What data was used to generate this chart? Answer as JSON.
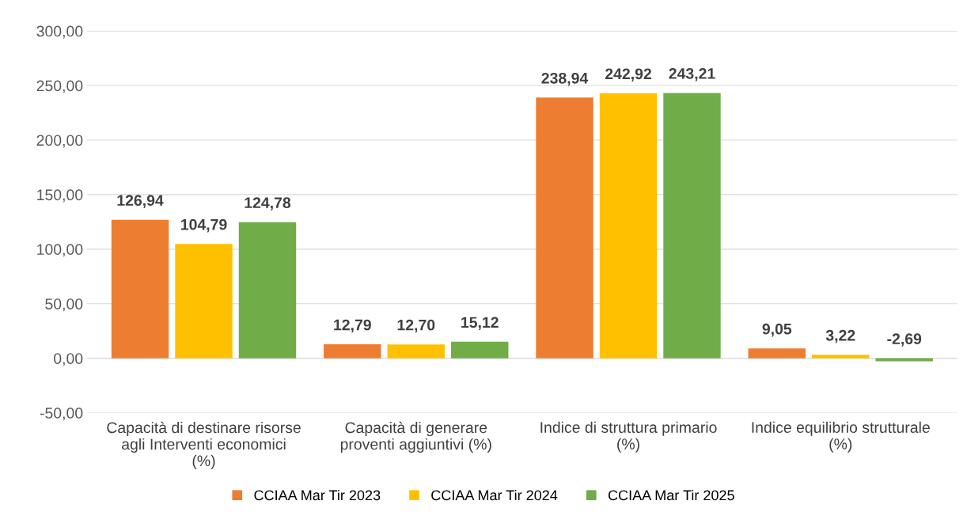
{
  "chart_data": {
    "type": "bar",
    "categories": [
      "Capacità di destinare risorse\nagli Interventi economici\n(%)",
      "Capacità di generare\nproventi aggiuntivi (%)",
      "Indice di struttura primario\n(%)",
      "Indice equilibrio strutturale\n(%)"
    ],
    "series": [
      {
        "name": "CCIAA Mar Tir 2023",
        "color": "#ed7d31",
        "values": [
          126.94,
          12.79,
          238.94,
          9.05
        ],
        "value_labels": [
          "126,94",
          "12,79",
          "238,94",
          "9,05"
        ]
      },
      {
        "name": "CCIAA Mar Tir 2024",
        "color": "#ffc000",
        "values": [
          104.79,
          12.7,
          242.92,
          3.22
        ],
        "value_labels": [
          "104,79",
          "12,70",
          "242,92",
          "3,22"
        ]
      },
      {
        "name": "CCIAA Mar Tir 2025",
        "color": "#70ad47",
        "values": [
          124.78,
          15.12,
          243.21,
          -2.69
        ],
        "value_labels": [
          "124,78",
          "15,12",
          "243,21",
          "-2,69"
        ]
      }
    ],
    "ylim": [
      -50,
      300
    ],
    "yticks": [
      {
        "value": -50,
        "label": "-50,00"
      },
      {
        "value": 0,
        "label": "0,00"
      },
      {
        "value": 50,
        "label": "50,00"
      },
      {
        "value": 100,
        "label": "100,00"
      },
      {
        "value": 150,
        "label": "150,00"
      },
      {
        "value": 200,
        "label": "200,00"
      },
      {
        "value": 250,
        "label": "250,00"
      },
      {
        "value": 300,
        "label": "300,00"
      }
    ],
    "grid": "y",
    "legend": "bottom"
  }
}
